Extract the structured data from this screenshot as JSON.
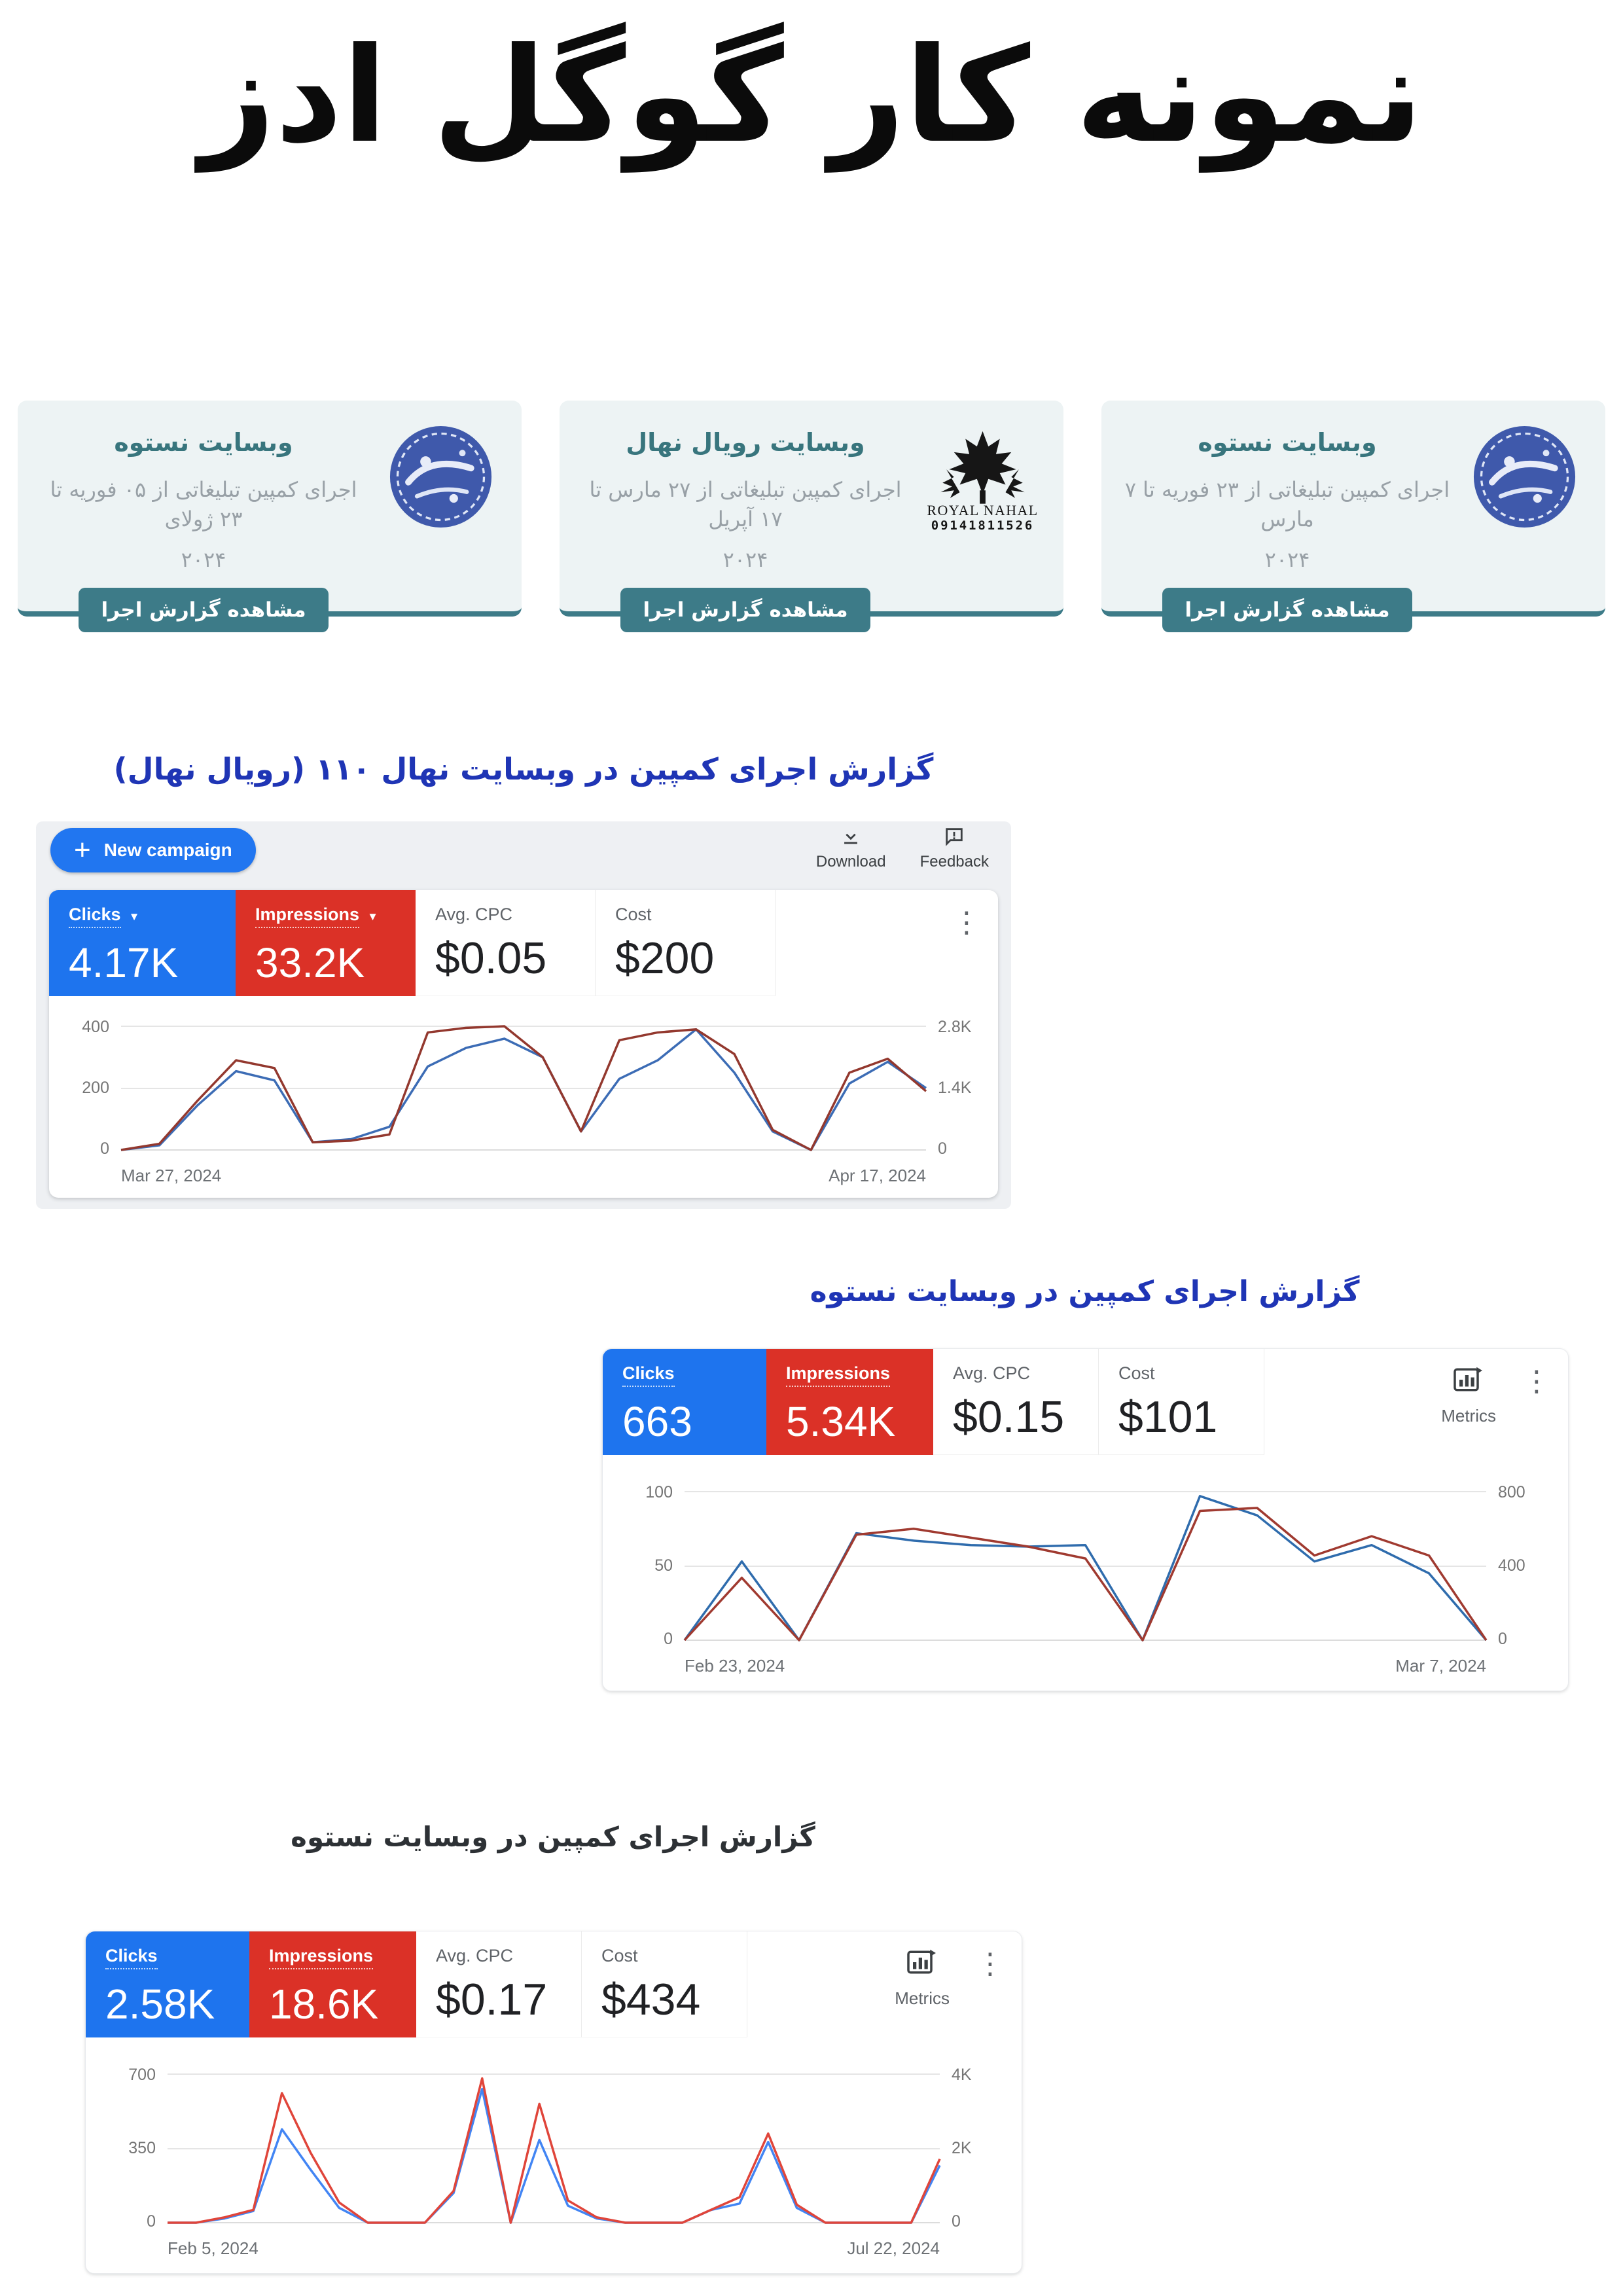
{
  "page_title": "نمونه کار گوگل ادز",
  "icons": {
    "plus": "+",
    "caret_down": "▼",
    "kebab": "⋮"
  },
  "cards": [
    {
      "title": "وبسایت نستوه",
      "subtitle": "اجرای کمپین تبلیغاتی از ۰۵ فوریه تا ۲۳ ژولای",
      "year": "۲۰۲۴",
      "button": "مشاهده گزارش اجرا",
      "logo": "nastooh-blue-emblem"
    },
    {
      "title": "وبسایت رویال نهال",
      "subtitle": "اجرای کمپین تبلیغاتی از ۲۷ مارس تا ۱۷ آپریل",
      "year": "۲۰۲۴",
      "button": "مشاهده گزارش اجرا",
      "logo": "royal-nahal-maple-leaf",
      "logo_text": "ROYAL NAHAL",
      "logo_phone": "09141811526"
    },
    {
      "title": "وبسایت نستوه",
      "subtitle": "اجرای کمپین تبلیغاتی از ۲۳ فوریه تا ۷ مارس",
      "year": "۲۰۲۴",
      "button": "مشاهده گزارش اجرا",
      "logo": "nastooh-blue-emblem"
    }
  ],
  "sections": [
    {
      "title": "گزارش اجرای کمپین در وبسایت نهال ۱۱۰ (رویال نهال)"
    },
    {
      "title": "گزارش اجرای کمپین در وبسایت نستوه"
    },
    {
      "title": "گزارش اجرای کمپین در وبسایت نستوه"
    }
  ],
  "dashboards": [
    {
      "toolbar": {
        "new_campaign": "New campaign",
        "download": "Download",
        "feedback": "Feedback"
      },
      "metrics": [
        {
          "label": "Clicks",
          "value": "4.17K"
        },
        {
          "label": "Impressions",
          "value": "33.2K"
        },
        {
          "label": "Avg. CPC",
          "value": "$0.05"
        },
        {
          "label": "Cost",
          "value": "$200"
        }
      ]
    },
    {
      "metrics_label": "Metrics",
      "metrics": [
        {
          "label": "Clicks",
          "value": "663"
        },
        {
          "label": "Impressions",
          "value": "5.34K"
        },
        {
          "label": "Avg. CPC",
          "value": "$0.15"
        },
        {
          "label": "Cost",
          "value": "$101"
        }
      ]
    },
    {
      "metrics_label": "Metrics",
      "metrics": [
        {
          "label": "Clicks",
          "value": "2.58K"
        },
        {
          "label": "Impressions",
          "value": "18.6K"
        },
        {
          "label": "Avg. CPC",
          "value": "$0.17"
        },
        {
          "label": "Cost",
          "value": "$434"
        }
      ]
    }
  ],
  "chart_data": [
    {
      "type": "line",
      "x_start_label": "Mar 27, 2024",
      "x_end_label": "Apr 17, 2024",
      "left_ticks": [
        "400",
        "200",
        "0"
      ],
      "right_ticks": [
        "2.8K",
        "1.4K",
        "0"
      ],
      "left_axis_max": 400,
      "right_axis_max": 2800,
      "grid": true,
      "series": [
        {
          "name": "Clicks",
          "axis": "left",
          "color": "#3c6cb5",
          "values": [
            0,
            15,
            145,
            255,
            225,
            25,
            35,
            75,
            270,
            330,
            360,
            300,
            60,
            230,
            290,
            390,
            250,
            60,
            0,
            215,
            285,
            200
          ]
        },
        {
          "name": "Impressions",
          "axis": "right",
          "color": "#93382e",
          "values": [
            0,
            140,
            1120,
            2030,
            1855,
            175,
            210,
            350,
            2660,
            2765,
            2800,
            2100,
            420,
            2485,
            2660,
            2730,
            2170,
            455,
            0,
            1750,
            2065,
            1330
          ]
        }
      ]
    },
    {
      "type": "line",
      "x_start_label": "Feb 23, 2024",
      "x_end_label": "Mar 7, 2024",
      "left_ticks": [
        "100",
        "50",
        "0"
      ],
      "right_ticks": [
        "800",
        "400",
        "0"
      ],
      "left_axis_max": 100,
      "right_axis_max": 800,
      "grid": true,
      "series": [
        {
          "name": "Clicks",
          "axis": "left",
          "color": "#2f6cad",
          "values": [
            0,
            53,
            0,
            72,
            67,
            64,
            63,
            64,
            0,
            97,
            84,
            53,
            64,
            45,
            0
          ]
        },
        {
          "name": "Impressions",
          "axis": "right",
          "color": "#a03a30",
          "values": [
            0,
            336,
            0,
            568,
            600,
            552,
            504,
            440,
            0,
            696,
            712,
            456,
            560,
            456,
            0
          ]
        }
      ]
    },
    {
      "type": "line",
      "x_start_label": "Feb 5, 2024",
      "x_end_label": "Jul 22, 2024",
      "left_ticks": [
        "700",
        "350",
        "0"
      ],
      "right_ticks": [
        "4K",
        "2K",
        "0"
      ],
      "left_axis_max": 700,
      "right_axis_max": 4000,
      "grid": true,
      "series": [
        {
          "name": "Clicks",
          "axis": "left",
          "color": "#4285f4",
          "values": [
            0,
            0,
            20,
            55,
            440,
            250,
            70,
            0,
            0,
            0,
            140,
            630,
            0,
            390,
            80,
            20,
            0,
            0,
            0,
            60,
            90,
            380,
            70,
            0,
            0,
            0,
            0,
            270
          ]
        },
        {
          "name": "Impressions",
          "axis": "right",
          "color": "#e0453a",
          "values": [
            0,
            0,
            145,
            345,
            3490,
            1885,
            545,
            0,
            0,
            0,
            855,
            3885,
            0,
            3200,
            600,
            145,
            0,
            0,
            0,
            345,
            685,
            2400,
            485,
            0,
            0,
            0,
            0,
            1715
          ]
        }
      ]
    }
  ]
}
